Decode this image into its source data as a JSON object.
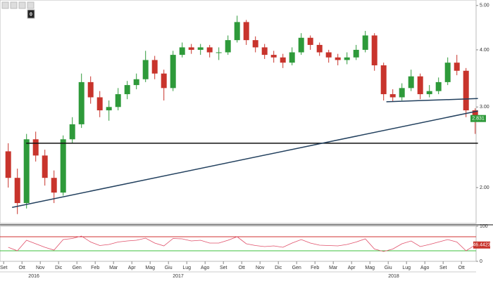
{
  "toolbar": {
    "badge": "0"
  },
  "chart_data": {
    "type": "candlestick",
    "log_scale": true,
    "x": [
      0.25,
      0.75,
      1.25,
      1.75,
      2.25,
      2.75,
      3.25,
      3.75,
      4.25,
      4.75,
      5.25,
      5.75,
      6.25,
      6.75,
      7.25,
      7.75,
      8.25,
      8.75,
      9.25,
      9.75,
      10.25,
      10.75,
      11.25,
      11.75,
      12.25,
      12.75,
      13.25,
      13.75,
      14.25,
      14.75,
      15.25,
      15.75,
      16.25,
      16.75,
      17.25,
      17.75,
      18.25,
      18.75,
      19.25,
      19.75,
      20.25,
      20.75,
      21.25,
      21.75,
      22.25,
      22.75,
      23.25,
      23.75,
      24.25,
      24.75,
      25.25,
      25.75
    ],
    "open": [
      2.4,
      2.1,
      1.85,
      2.55,
      2.35,
      2.1,
      1.95,
      2.55,
      2.75,
      3.4,
      3.15,
      2.95,
      3.0,
      3.2,
      3.35,
      3.45,
      3.8,
      3.55,
      3.3,
      3.9,
      4.05,
      4.0,
      4.05,
      3.95,
      3.95,
      4.2,
      4.6,
      4.2,
      4.05,
      3.9,
      3.85,
      3.75,
      3.95,
      4.25,
      4.1,
      3.95,
      3.85,
      3.8,
      3.85,
      4.0,
      4.3,
      3.7,
      3.2,
      3.15,
      3.3,
      3.5,
      3.2,
      3.25,
      3.4,
      3.75,
      3.6,
      2.95
    ],
    "high": [
      2.5,
      2.2,
      2.62,
      2.65,
      2.42,
      2.18,
      2.6,
      2.85,
      3.55,
      3.5,
      3.25,
      3.1,
      3.3,
      3.42,
      3.55,
      3.98,
      3.88,
      3.62,
      3.98,
      4.15,
      4.12,
      4.12,
      4.1,
      4.05,
      4.3,
      4.75,
      4.65,
      4.28,
      4.12,
      3.98,
      3.92,
      4.05,
      4.35,
      4.3,
      4.15,
      4.0,
      3.92,
      3.95,
      4.1,
      4.4,
      4.35,
      3.75,
      3.28,
      3.38,
      3.62,
      3.55,
      3.35,
      3.48,
      3.85,
      3.9,
      3.65,
      2.98
    ],
    "low": [
      2.0,
      1.75,
      1.8,
      2.28,
      2.02,
      1.85,
      1.92,
      2.5,
      2.7,
      3.05,
      2.85,
      2.8,
      2.95,
      3.12,
      3.28,
      3.4,
      3.45,
      3.1,
      3.25,
      3.85,
      3.92,
      3.9,
      3.85,
      3.8,
      3.9,
      4.15,
      4.1,
      3.95,
      3.82,
      3.75,
      3.65,
      3.7,
      3.9,
      4.0,
      3.88,
      3.75,
      3.7,
      3.72,
      3.8,
      3.95,
      3.6,
      3.1,
      3.08,
      3.1,
      3.25,
      3.12,
      3.15,
      3.2,
      3.35,
      3.52,
      2.85,
      2.62
    ],
    "close": [
      2.1,
      1.85,
      2.55,
      2.35,
      2.1,
      1.95,
      2.55,
      2.75,
      3.4,
      3.15,
      2.95,
      3.0,
      3.2,
      3.35,
      3.45,
      3.8,
      3.55,
      3.3,
      3.9,
      4.05,
      4.0,
      4.05,
      3.95,
      3.95,
      4.2,
      4.6,
      4.2,
      4.05,
      3.9,
      3.85,
      3.75,
      3.95,
      4.25,
      4.1,
      3.95,
      3.85,
      3.8,
      3.85,
      4.0,
      4.3,
      3.7,
      3.2,
      3.15,
      3.3,
      3.5,
      3.2,
      3.25,
      3.4,
      3.75,
      3.6,
      2.95,
      2.831
    ],
    "up_color": "#2e9a3a",
    "down_color": "#c8342c",
    "xlim": [
      -0.2,
      25.8
    ],
    "xticks": [
      {
        "value": 0,
        "label": "Set"
      },
      {
        "value": 1,
        "label": "Ott"
      },
      {
        "value": 2,
        "label": "Nov"
      },
      {
        "value": 3,
        "label": "Dic"
      },
      {
        "value": 4,
        "label": "Gen"
      },
      {
        "value": 5,
        "label": "Feb"
      },
      {
        "value": 6,
        "label": "Mar"
      },
      {
        "value": 7,
        "label": "Apr"
      },
      {
        "value": 8,
        "label": "Mag"
      },
      {
        "value": 9,
        "label": "Giu"
      },
      {
        "value": 10,
        "label": "Lug"
      },
      {
        "value": 11,
        "label": "Ago"
      },
      {
        "value": 12,
        "label": "Set"
      },
      {
        "value": 13,
        "label": "Ott"
      },
      {
        "value": 14,
        "label": "Nov"
      },
      {
        "value": 15,
        "label": "Dic"
      },
      {
        "value": 16,
        "label": "Gen"
      },
      {
        "value": 17,
        "label": "Feb"
      },
      {
        "value": 18,
        "label": "Mar"
      },
      {
        "value": 19,
        "label": "Apr"
      },
      {
        "value": 20,
        "label": "Mag"
      },
      {
        "value": 21,
        "label": "Giu"
      },
      {
        "value": 22,
        "label": "Lug"
      },
      {
        "value": 23,
        "label": "Ago"
      },
      {
        "value": 24,
        "label": "Set"
      },
      {
        "value": 25,
        "label": "Ott"
      }
    ],
    "year_ticks": [
      {
        "value": 1.65,
        "label": "2016"
      },
      {
        "value": 9.53,
        "label": "2017"
      },
      {
        "value": 21.3,
        "label": "2018"
      }
    ],
    "ylim": [
      1.67,
      5.14
    ],
    "yticks": [
      {
        "value": 5,
        "label": "5.00"
      },
      {
        "value": 4,
        "label": "4.00"
      },
      {
        "value": 3,
        "label": "3.00"
      },
      {
        "value": 2,
        "label": "2.00"
      }
    ],
    "trendlines": [
      {
        "color": "#111111",
        "x": [
          1.23,
          25.9
        ],
        "y": [
          2.5,
          2.5
        ]
      },
      {
        "color": "#22405e",
        "x": [
          0.46,
          25.9
        ],
        "y": [
          1.81,
          2.94
        ]
      },
      {
        "color": "#22405e",
        "x": [
          20.9,
          25.9
        ],
        "y": [
          3.08,
          3.13
        ]
      }
    ],
    "rsi": {
      "color": "#e0506a",
      "values": [
        40,
        30,
        60,
        50,
        40,
        32,
        62,
        65,
        72,
        55,
        45,
        48,
        55,
        58,
        60,
        66,
        52,
        44,
        65,
        64,
        58,
        60,
        52,
        52,
        60,
        70,
        50,
        45,
        42,
        44,
        40,
        52,
        62,
        52,
        46,
        45,
        44,
        48,
        55,
        64,
        35,
        28,
        35,
        50,
        58,
        42,
        48,
        55,
        62,
        55,
        30,
        46.4423
      ],
      "ylim": [
        0,
        100
      ],
      "yticks": [
        100,
        0
      ],
      "levels": [
        {
          "value": 70,
          "color": "#d23030"
        },
        {
          "value": 30,
          "color": "#3cc03c"
        }
      ]
    }
  }
}
